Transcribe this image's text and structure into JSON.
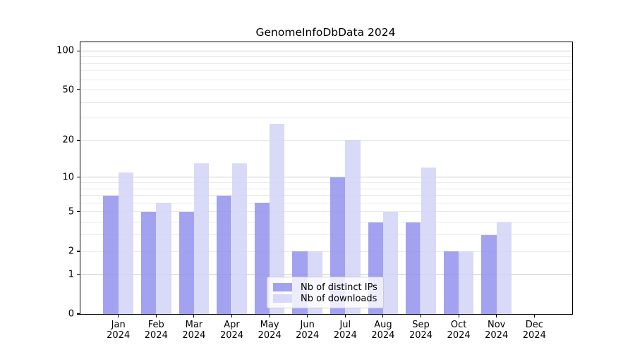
{
  "title": "GenomeInfoDbData 2024",
  "chart_data": {
    "type": "bar",
    "categories": [
      "Jan",
      "Feb",
      "Mar",
      "Apr",
      "May",
      "Jun",
      "Jul",
      "Aug",
      "Sep",
      "Oct",
      "Nov",
      "Dec"
    ],
    "x_year_label": "2024",
    "series": [
      {
        "name": "Nb of distinct IPs",
        "color": "#9292ee",
        "alpha": 0.85,
        "values": [
          7,
          5,
          5,
          7,
          6,
          2,
          10,
          4,
          4,
          2,
          3,
          0
        ]
      },
      {
        "name": "Nb of downloads",
        "color": "#d2d2f7",
        "alpha": 0.85,
        "values": [
          11,
          6,
          13,
          13,
          27,
          2,
          20,
          5,
          12,
          2,
          4,
          0
        ]
      }
    ],
    "yscale": "log1p",
    "ylim": [
      0,
      116
    ],
    "yticks": [
      0,
      1,
      2,
      5,
      10,
      20,
      50,
      100
    ],
    "grid_decade_lines": [
      1,
      10,
      100
    ],
    "grid_other_lines": [
      2,
      3,
      4,
      5,
      6,
      7,
      8,
      9,
      20,
      30,
      40,
      50,
      60,
      70,
      80,
      90
    ],
    "grid_color_decade": "#cbcbcb",
    "grid_color_other": "#e9e9e9",
    "axis_color": "#000000",
    "background": "#ffffff",
    "legend_position": "inside-bottom-center",
    "grid": "horizontal"
  }
}
